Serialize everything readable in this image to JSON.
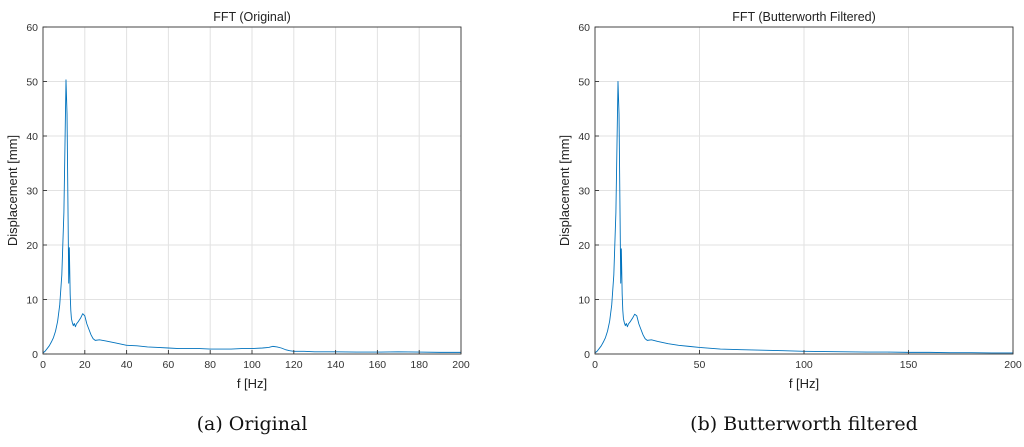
{
  "chart_data": [
    {
      "type": "line",
      "title": "FFT (Original)",
      "xlabel": "f [Hz]",
      "ylabel": "Displacement [mm]",
      "xlim": [
        0,
        200
      ],
      "ylim": [
        0,
        60
      ],
      "xticks": [
        0,
        20,
        40,
        60,
        80,
        100,
        120,
        140,
        160,
        180,
        200
      ],
      "yticks": [
        0,
        10,
        20,
        30,
        40,
        50,
        60
      ],
      "grid": true,
      "caption": "(a) Original",
      "color": "#0072bd",
      "series": [
        {
          "x": [
            0,
            1,
            2,
            3,
            4,
            5,
            6,
            7,
            8,
            9,
            10,
            10.5,
            11,
            11.5,
            12,
            12.3,
            12.6,
            13,
            13.3,
            13.6,
            14,
            14.5,
            15,
            15.5,
            16,
            17,
            18,
            19,
            20,
            21,
            22,
            23,
            24,
            25,
            27,
            30,
            35,
            40,
            45,
            50,
            55,
            60,
            65,
            70,
            75,
            80,
            85,
            90,
            95,
            100,
            105,
            108,
            110,
            112,
            114,
            116,
            118,
            120,
            125,
            130,
            140,
            150,
            160,
            170,
            180,
            190,
            200
          ],
          "y": [
            0.2,
            0.5,
            1.0,
            1.5,
            2.2,
            3.0,
            4.2,
            6.0,
            9.0,
            14.5,
            26.0,
            38.0,
            50.3,
            44.0,
            25.0,
            13.0,
            19.5,
            11.0,
            8.0,
            6.5,
            5.8,
            5.2,
            5.6,
            5.0,
            5.5,
            6.0,
            6.6,
            7.4,
            7.0,
            5.5,
            4.5,
            3.5,
            2.8,
            2.5,
            2.6,
            2.4,
            2.0,
            1.6,
            1.5,
            1.3,
            1.2,
            1.1,
            1.0,
            1.0,
            1.0,
            0.9,
            0.9,
            0.9,
            1.0,
            1.0,
            1.1,
            1.2,
            1.4,
            1.3,
            1.1,
            0.8,
            0.6,
            0.5,
            0.5,
            0.4,
            0.4,
            0.35,
            0.35,
            0.4,
            0.35,
            0.3,
            0.3
          ]
        }
      ]
    },
    {
      "type": "line",
      "title": "FFT (Butterworth Filtered)",
      "xlabel": "f [Hz]",
      "ylabel": "Displacement [mm]",
      "xlim": [
        0,
        200
      ],
      "ylim": [
        0,
        60
      ],
      "xticks": [
        0,
        50,
        100,
        150,
        200
      ],
      "yticks": [
        0,
        10,
        20,
        30,
        40,
        50,
        60
      ],
      "grid": true,
      "caption": "(b) Butterworth filtered",
      "color": "#0072bd",
      "series": [
        {
          "x": [
            0,
            1,
            2,
            3,
            4,
            5,
            6,
            7,
            8,
            9,
            10,
            10.5,
            11,
            11.5,
            12,
            12.3,
            12.6,
            13,
            13.3,
            13.6,
            14,
            14.5,
            15,
            15.5,
            16,
            17,
            18,
            19,
            20,
            21,
            22,
            23,
            24,
            25,
            27,
            30,
            35,
            40,
            45,
            50,
            60,
            70,
            80,
            90,
            100,
            110,
            120,
            130,
            140,
            150,
            160,
            170,
            180,
            190,
            200
          ],
          "y": [
            0.2,
            0.5,
            1.0,
            1.5,
            2.2,
            3.0,
            4.2,
            6.0,
            9.0,
            14.5,
            26.0,
            38.0,
            50.0,
            44.0,
            25.0,
            13.0,
            19.3,
            11.0,
            8.0,
            6.5,
            5.8,
            5.2,
            5.6,
            5.0,
            5.5,
            6.0,
            6.6,
            7.3,
            7.0,
            5.5,
            4.5,
            3.5,
            2.8,
            2.5,
            2.6,
            2.3,
            1.9,
            1.6,
            1.4,
            1.2,
            0.9,
            0.8,
            0.7,
            0.6,
            0.5,
            0.45,
            0.4,
            0.35,
            0.35,
            0.3,
            0.3,
            0.25,
            0.25,
            0.2,
            0.2
          ]
        }
      ]
    }
  ]
}
